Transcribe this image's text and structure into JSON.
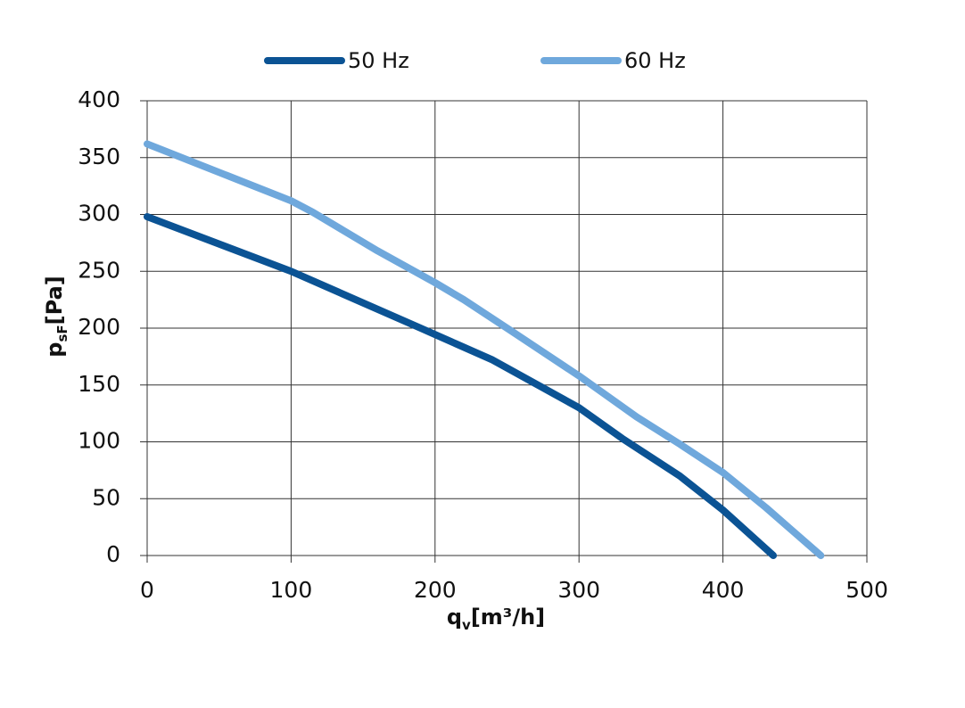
{
  "chart_data": {
    "type": "line",
    "x_label": {
      "main": "q",
      "sub": "v",
      "unit": "[m³/h]"
    },
    "y_label": {
      "main": "p",
      "sub": "sF",
      "unit": "[Pa]"
    },
    "xlim": [
      0,
      500
    ],
    "xticks": [
      0,
      100,
      200,
      300,
      400,
      500
    ],
    "ylim": [
      0,
      400
    ],
    "yticks": [
      0,
      50,
      100,
      150,
      200,
      250,
      300,
      350,
      400
    ],
    "grid": true,
    "legend": "top",
    "series": [
      {
        "name": "50 Hz",
        "color": "#0b5394",
        "x": [
          0,
          100,
          190,
          240,
          300,
          330,
          370,
          400,
          435
        ],
        "values": [
          298,
          250,
          200,
          172,
          130,
          103,
          70,
          40,
          0
        ]
      },
      {
        "name": "60 Hz",
        "color": "#6fa8dc",
        "x": [
          0,
          100,
          115,
          160,
          200,
          220,
          250,
          300,
          340,
          370,
          400,
          430,
          468
        ],
        "values": [
          362,
          312,
          302,
          268,
          240,
          225,
          200,
          158,
          122,
          98,
          73,
          42,
          0
        ]
      }
    ]
  }
}
